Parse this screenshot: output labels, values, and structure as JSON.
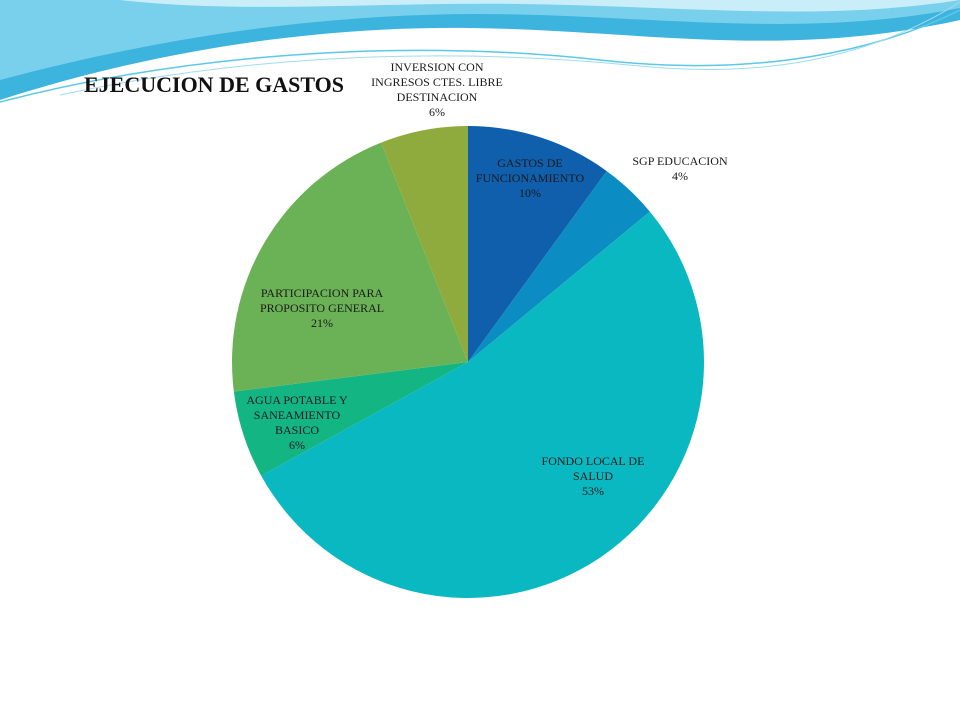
{
  "theme": {
    "swoosh_colors": [
      "#1aa7d8",
      "#7fd3ee",
      "#c9eefa"
    ]
  },
  "chart_data": {
    "type": "pie",
    "title": "EJECUCION DE GASTOS",
    "legend": "none",
    "slices": [
      {
        "label": "GASTOS DE FUNCIONAMIENTO",
        "percent_label": "10%",
        "value": 10,
        "color": "#0f5fad"
      },
      {
        "label": "SGP EDUCACION",
        "percent_label": "4%",
        "value": 4,
        "color": "#0b8cc2"
      },
      {
        "label": "FONDO LOCAL DE SALUD",
        "percent_label": "53%",
        "value": 53,
        "color": "#0ab8c2"
      },
      {
        "label": "AGUA POTABLE Y SANEAMIENTO BASICO",
        "percent_label": "6%",
        "value": 6,
        "color": "#13b583"
      },
      {
        "label": "PARTICIPACION PARA PROPOSITO GENERAL",
        "percent_label": "21%",
        "value": 21,
        "color": "#6ab255"
      },
      {
        "label": "INVERSION CON INGRESOS CTES. LIBRE DESTINACION",
        "percent_label": "6%",
        "value": 6,
        "color": "#8fab3e"
      }
    ]
  }
}
